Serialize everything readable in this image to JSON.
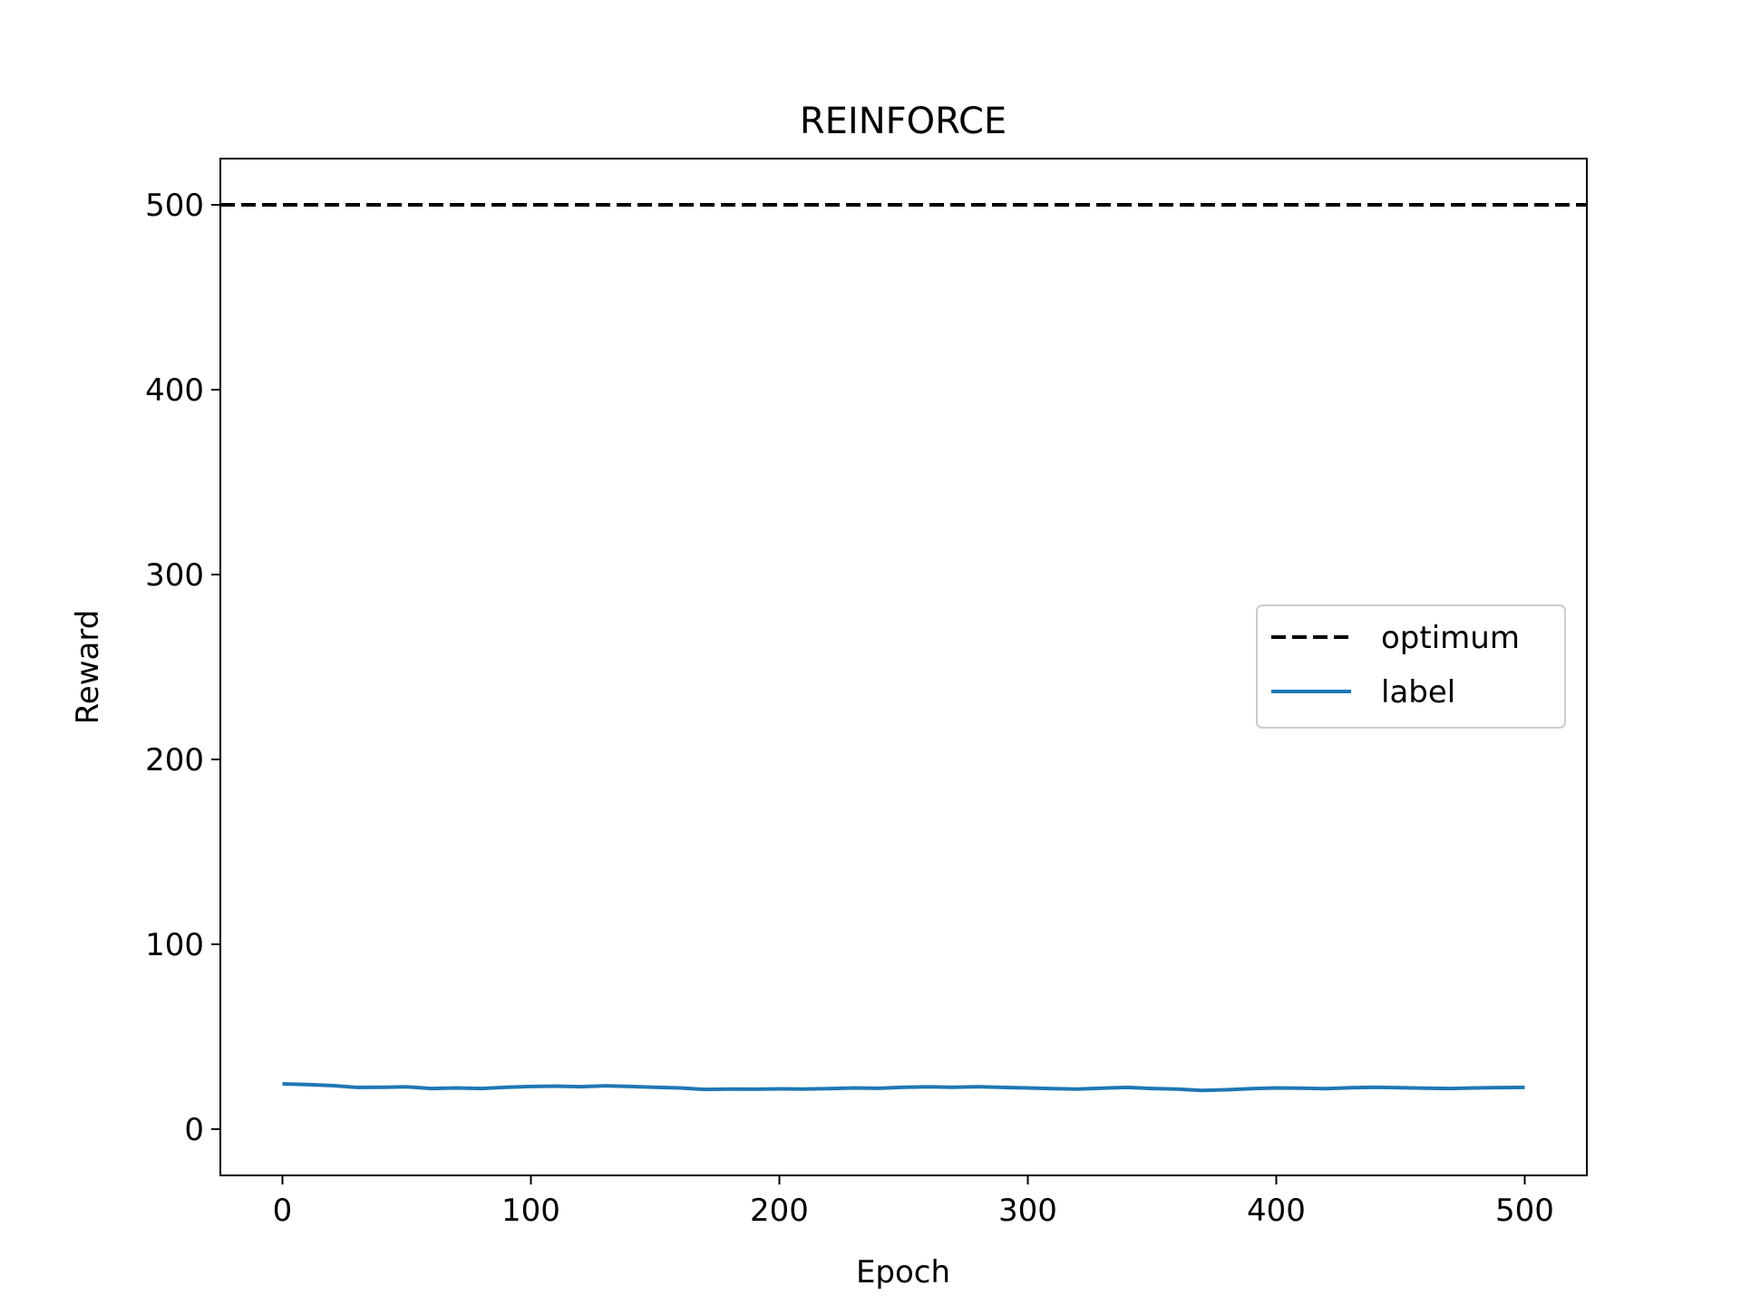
{
  "chart_data": {
    "type": "line",
    "title": "REINFORCE",
    "xlabel": "Epoch",
    "ylabel": "Reward",
    "xlim": [
      -25,
      525
    ],
    "ylim": [
      -25,
      525
    ],
    "xticks": [
      0,
      100,
      200,
      300,
      400,
      500
    ],
    "yticks": [
      0,
      100,
      200,
      300,
      400,
      500
    ],
    "grid": false,
    "legend_position": "center-right",
    "series": [
      {
        "name": "optimum",
        "style": "dashed",
        "color": "#000000",
        "x": [
          -25,
          525
        ],
        "y": [
          500,
          500
        ]
      },
      {
        "name": "label",
        "style": "solid",
        "color": "#1f77b4",
        "x": [
          0,
          10,
          20,
          30,
          40,
          50,
          60,
          70,
          80,
          90,
          100,
          110,
          120,
          130,
          140,
          150,
          160,
          170,
          180,
          190,
          200,
          210,
          220,
          230,
          240,
          250,
          260,
          270,
          280,
          290,
          300,
          310,
          320,
          330,
          340,
          350,
          360,
          370,
          380,
          390,
          400,
          410,
          420,
          430,
          440,
          450,
          460,
          470,
          480,
          490,
          500
        ],
        "y": [
          24.5,
          24.1,
          23.6,
          22.6,
          22.7,
          22.9,
          22.0,
          22.3,
          22.0,
          22.7,
          23.1,
          23.3,
          23.0,
          23.5,
          23.1,
          22.7,
          22.3,
          21.5,
          21.7,
          21.6,
          21.8,
          21.7,
          21.9,
          22.3,
          22.1,
          22.7,
          22.9,
          22.7,
          23.0,
          22.6,
          22.3,
          21.9,
          21.7,
          22.2,
          22.6,
          22.0,
          21.7,
          21.0,
          21.3,
          21.9,
          22.3,
          22.2,
          21.9,
          22.4,
          22.7,
          22.4,
          22.2,
          22.0,
          22.3,
          22.5,
          22.6
        ]
      }
    ]
  }
}
